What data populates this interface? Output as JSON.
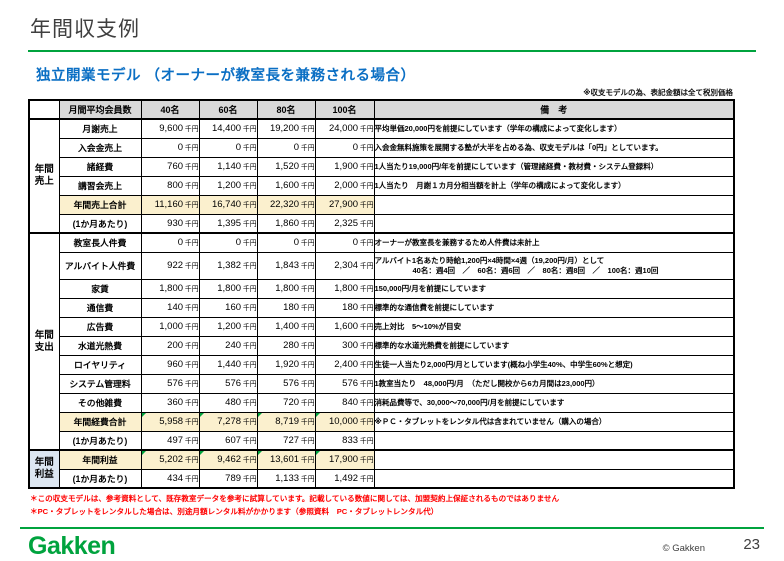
{
  "page": {
    "title": "年間収支例",
    "subtitle": "独立開業モデル （オーナーが教室長を兼務される場合）",
    "tax_note": "※収支モデルの為、表記金額は全て税別価格",
    "footnotes": [
      "＊この収支モデルは、参考資料として、既存教室データを参考に試算しています。記載している数値に関しては、加盟契約上保証されるものではありません",
      "＊PC・タブレットをレンタルした場合は、別途月額レンタル料がかかります（参照資料　PC・タブレットレンタル代）"
    ],
    "footer": {
      "logo": "Gakken",
      "copyright": "© Gakken",
      "page_number": "23"
    }
  },
  "colors": {
    "brand_green": "#00a33e",
    "subtitle_blue": "#0b6fc4",
    "highlight_cream": "#fbf0ce",
    "profit_blue": "#dce6f1",
    "header_gray": "#d9d9d9",
    "footnote_red": "#ff0000"
  },
  "table": {
    "unit": "千円",
    "header": {
      "label": "月間平均会員数",
      "columns": [
        "40名",
        "60名",
        "80名",
        "100名"
      ],
      "remark": "備　考"
    },
    "groups": [
      {
        "name": "年間売上",
        "name_lines": [
          "年間",
          "売上"
        ],
        "style": "plain",
        "rows": [
          {
            "label": "月謝売上",
            "values": [
              "9,600",
              "14,400",
              "19,200",
              "24,000"
            ],
            "remark": [
              "平均単価20,000円を前提にしています（学年の構成によって変化します）"
            ],
            "highlight": false,
            "flags": false,
            "tall": false
          },
          {
            "label": "入会金売上",
            "values": [
              "0",
              "0",
              "0",
              "0"
            ],
            "remark": [
              "入会金無料施策を展開する塾が大半を占める為、収支モデルは「0円」としています。"
            ],
            "highlight": false,
            "flags": false,
            "tall": false
          },
          {
            "label": "諸経費",
            "values": [
              "760",
              "1,140",
              "1,520",
              "1,900"
            ],
            "remark": [
              "1人当たり19,000円/年を前提にしています（管理諸経費・教材費・システム登録料）"
            ],
            "highlight": false,
            "flags": false,
            "tall": false
          },
          {
            "label": "講習会売上",
            "values": [
              "800",
              "1,200",
              "1,600",
              "2,000"
            ],
            "remark": [
              "1人当たり　月謝１カ月分相当額を計上（学年の構成によって変化します）"
            ],
            "highlight": false,
            "flags": false,
            "tall": false
          },
          {
            "label": "年間売上合計",
            "values": [
              "11,160",
              "16,740",
              "22,320",
              "27,900"
            ],
            "remark": [],
            "highlight": true,
            "flags": false,
            "tall": false
          },
          {
            "label": "(1か月あたり)",
            "values": [
              "930",
              "1,395",
              "1,860",
              "2,325"
            ],
            "remark": [],
            "highlight": false,
            "flags": false,
            "tall": false
          }
        ]
      },
      {
        "name": "年間支出",
        "name_lines": [
          "年間",
          "支出"
        ],
        "style": "plain",
        "rows": [
          {
            "label": "教室長人件費",
            "values": [
              "0",
              "0",
              "0",
              "0"
            ],
            "remark": [
              "オーナーが教室長を兼務するため人件費は未計上"
            ],
            "highlight": false,
            "flags": false,
            "tall": false
          },
          {
            "label": "アルバイト人件費",
            "values": [
              "922",
              "1,382",
              "1,843",
              "2,304"
            ],
            "remark": [
              "アルバイト1名あたり時給1,200円×4時間×4週（19,200円/月）として",
              "40名：週4回　／　60名：週6回　／　80名：週8回　／　100名：週10回"
            ],
            "highlight": false,
            "flags": false,
            "tall": true
          },
          {
            "label": "家賃",
            "values": [
              "1,800",
              "1,800",
              "1,800",
              "1,800"
            ],
            "remark": [
              "150,000円/月を前提にしています"
            ],
            "highlight": false,
            "flags": false,
            "tall": false
          },
          {
            "label": "通信費",
            "values": [
              "140",
              "160",
              "180",
              "180"
            ],
            "remark": [
              "標準的な通信費を前提にしています"
            ],
            "highlight": false,
            "flags": false,
            "tall": false
          },
          {
            "label": "広告費",
            "values": [
              "1,000",
              "1,200",
              "1,400",
              "1,600"
            ],
            "remark": [
              "売上対比　5～10%が目安"
            ],
            "highlight": false,
            "flags": false,
            "tall": false
          },
          {
            "label": "水道光熱費",
            "values": [
              "200",
              "240",
              "280",
              "300"
            ],
            "remark": [
              "標準的な水道光熱費を前提にしています"
            ],
            "highlight": false,
            "flags": false,
            "tall": false
          },
          {
            "label": "ロイヤリティ",
            "values": [
              "960",
              "1,440",
              "1,920",
              "2,400"
            ],
            "remark": [
              "生徒一人当たり2,000円/月としています(概ね小学生40%、中学生60%と想定)"
            ],
            "highlight": false,
            "flags": false,
            "tall": false
          },
          {
            "label": "システム管理料",
            "values": [
              "576",
              "576",
              "576",
              "576"
            ],
            "remark": [
              "1教室当たり　48,000円/月　（ただし開校から6カ月間は23,000円）"
            ],
            "highlight": false,
            "flags": false,
            "tall": false
          },
          {
            "label": "その他雑費",
            "values": [
              "360",
              "480",
              "720",
              "840"
            ],
            "remark": [
              "消耗品費等で、30,000～70,000円/月を前提にしています"
            ],
            "highlight": false,
            "flags": false,
            "tall": false
          },
          {
            "label": "年間経費合計",
            "values": [
              "5,958",
              "7,278",
              "8,719",
              "10,000"
            ],
            "remark": [
              "※ＰＣ・タブレットをレンタル代は含まれていません（購入の場合）"
            ],
            "highlight": true,
            "flags": true,
            "tall": false
          },
          {
            "label": "(1か月あたり)",
            "values": [
              "497",
              "607",
              "727",
              "833"
            ],
            "remark": [],
            "highlight": false,
            "flags": false,
            "tall": false
          }
        ]
      },
      {
        "name": "年間利益",
        "name_lines": [
          "年間",
          "利益"
        ],
        "style": "blue",
        "rows": [
          {
            "label": "年間利益",
            "values": [
              "5,202",
              "9,462",
              "13,601",
              "17,900"
            ],
            "remark": [],
            "highlight": true,
            "flags": true,
            "tall": false
          },
          {
            "label": "(1か月あたり)",
            "values": [
              "434",
              "789",
              "1,133",
              "1,492"
            ],
            "remark": [],
            "highlight": false,
            "flags": false,
            "tall": false
          }
        ]
      }
    ]
  }
}
